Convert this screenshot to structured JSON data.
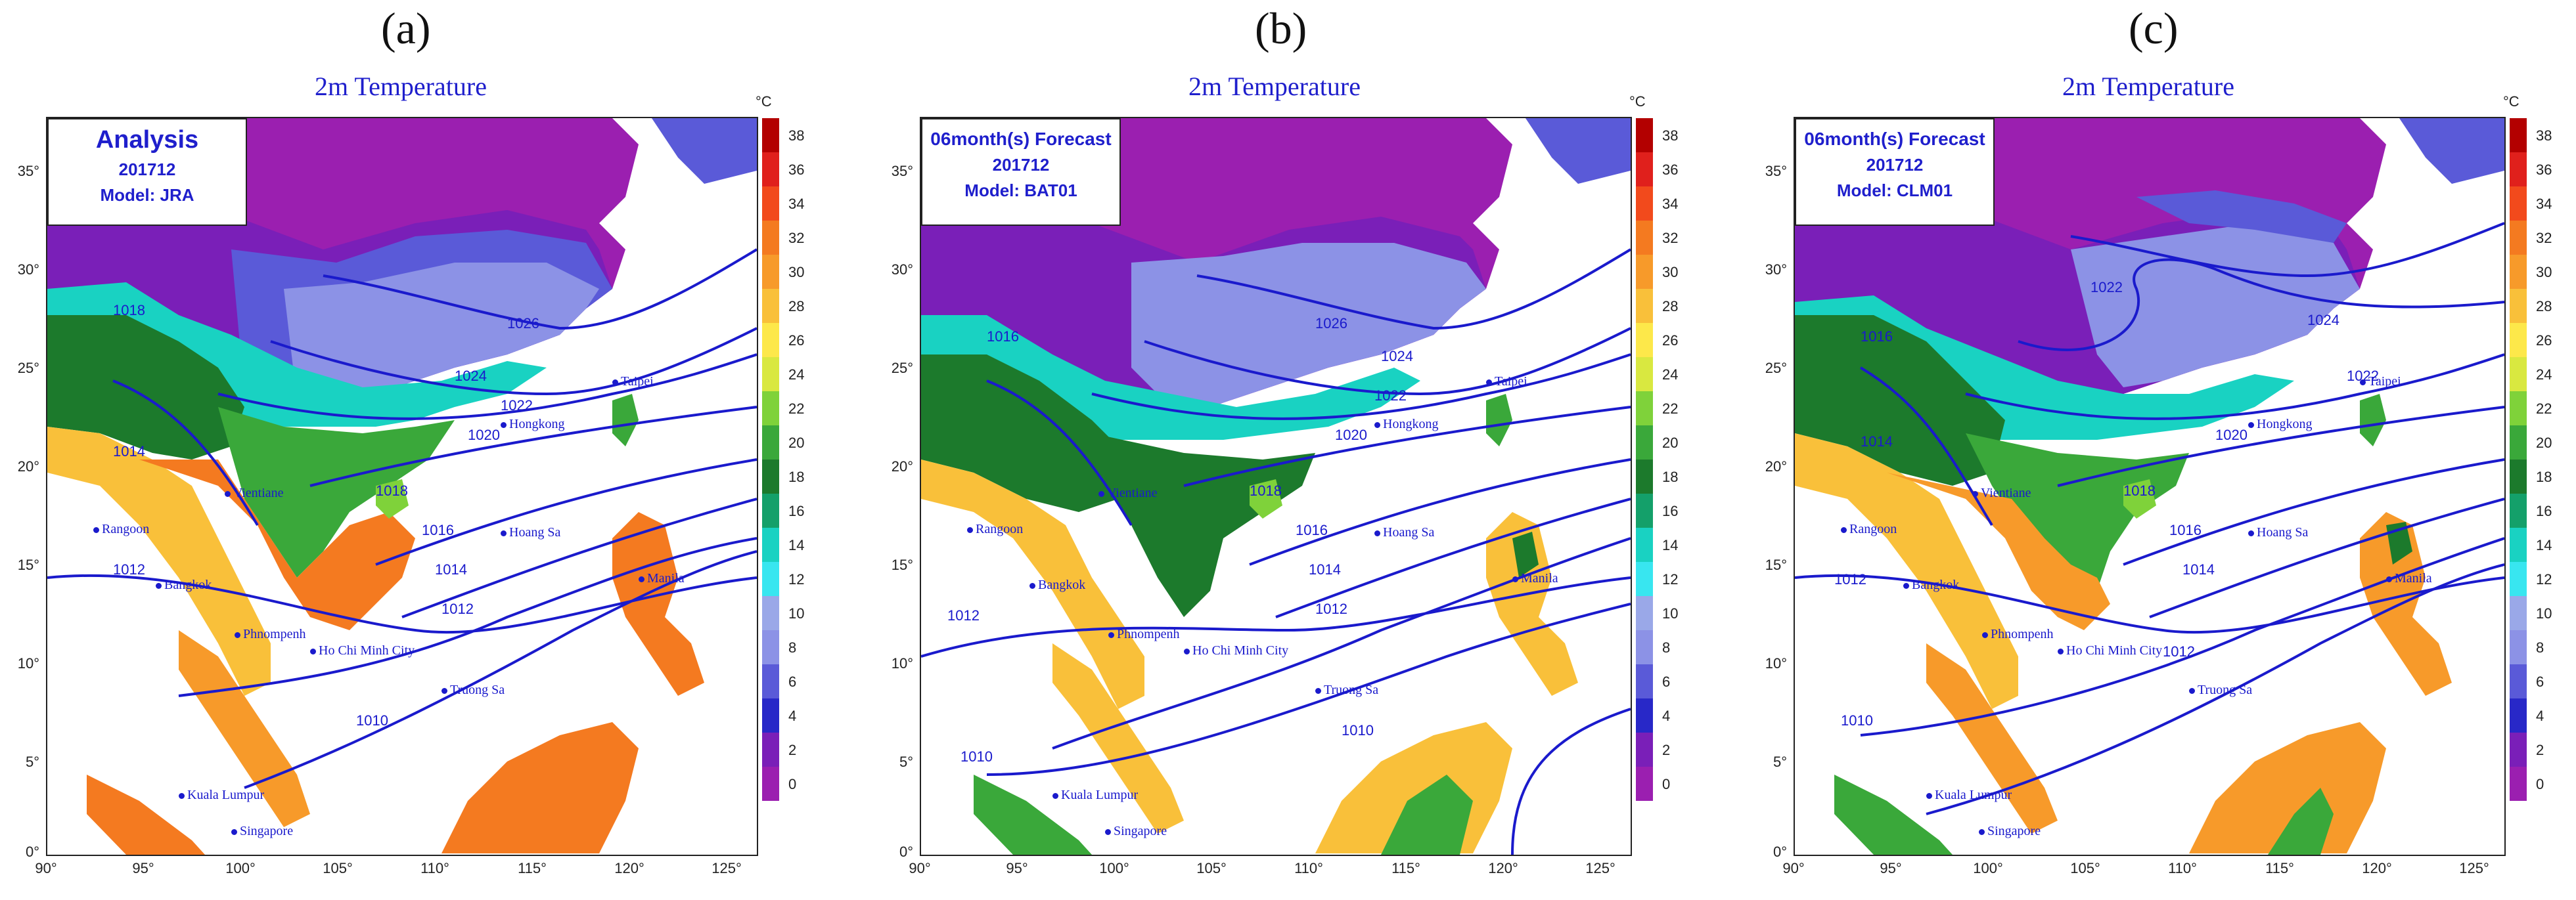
{
  "panels": [
    {
      "letter": "(a)",
      "title": "2m Temperature",
      "box_line1": "Analysis",
      "box_line2": "201712",
      "box_line3": "Model: JRA"
    },
    {
      "letter": "(b)",
      "title": "2m Temperature",
      "box_line1": "06month(s) Forecast",
      "box_line2": "201712",
      "box_line3": "Model: BAT01"
    },
    {
      "letter": "(c)",
      "title": "2m Temperature",
      "box_line1": "06month(s) Forecast",
      "box_line2": "201712",
      "box_line3": "Model: CLM01"
    }
  ],
  "colorbar": {
    "unit": "°C",
    "ticks": [
      "38",
      "36",
      "34",
      "32",
      "30",
      "28",
      "26",
      "24",
      "22",
      "20",
      "18",
      "16",
      "14",
      "12",
      "10",
      "8",
      "6",
      "4",
      "2",
      "0"
    ],
    "colors": [
      "#b30000",
      "#e0201c",
      "#f24a1c",
      "#f47a20",
      "#f79a2a",
      "#f9c03a",
      "#fde84a",
      "#d9e840",
      "#7fd23a",
      "#3aa83a",
      "#1c7a2c",
      "#14a06a",
      "#19d2c2",
      "#38e6f0",
      "#9aa8e8",
      "#8c92e6",
      "#5a5ad8",
      "#2828c8",
      "#7a1fb8",
      "#9b1fb0"
    ]
  },
  "axes": {
    "x_ticks": [
      "90°",
      "95°",
      "100°",
      "105°",
      "110°",
      "115°",
      "120°",
      "125°"
    ],
    "y_ticks": [
      "35°",
      "30°",
      "25°",
      "20°",
      "15°",
      "10°",
      "5°",
      "0°"
    ]
  },
  "cities": [
    "Taipei",
    "Hongkong",
    "Vientiane",
    "Hoang Sa",
    "Rangoon",
    "Bangkok",
    "Manila",
    "Phnompenh",
    "Ho Chi Minh City",
    "Truong Sa",
    "Kuala Lumpur",
    "Singapore"
  ],
  "isobars": {
    "a": [
      "1026",
      "1024",
      "1022",
      "1020",
      "1018",
      "1018",
      "1016",
      "1014",
      "1014",
      "1012",
      "1012",
      "1010"
    ],
    "b": [
      "1026",
      "1024",
      "1022",
      "1020",
      "1018",
      "1016",
      "1016",
      "1014",
      "1012",
      "1012",
      "1010",
      "1010"
    ],
    "c": [
      "1024",
      "1022",
      "1022",
      "1020",
      "1018",
      "1016",
      "1016",
      "1014",
      "1014",
      "1012",
      "1012",
      "1010"
    ]
  }
}
